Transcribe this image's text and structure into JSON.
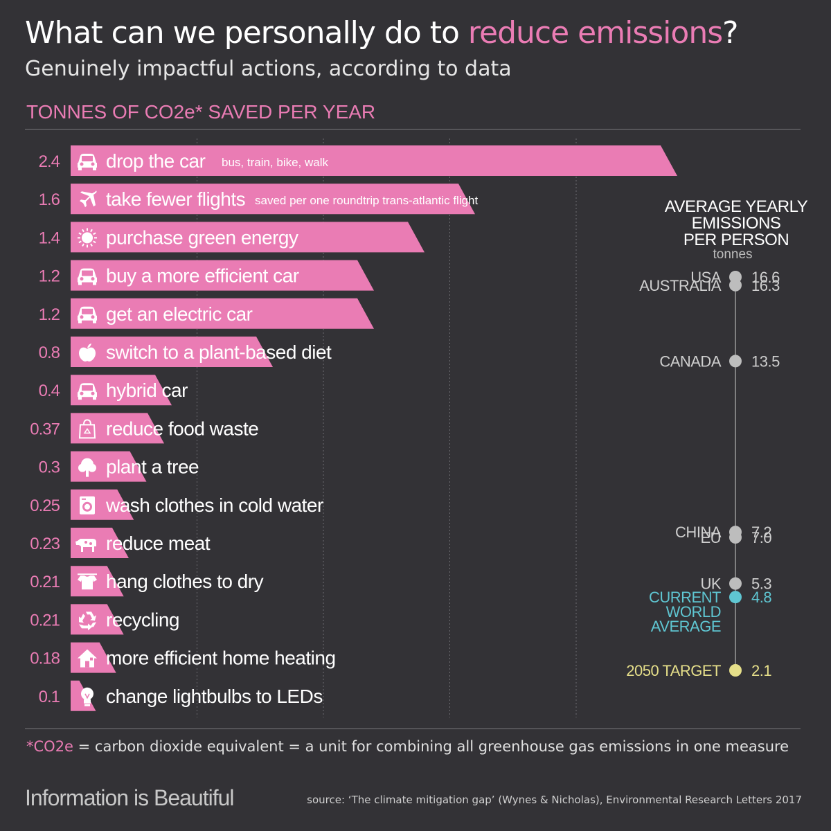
{
  "title": {
    "before": "What can we personally do to ",
    "highlight": "reduce emissions",
    "after": "?"
  },
  "subtitle": "Genuinely impactful actions, according to data",
  "section_label": "TONNES OF CO2e* SAVED PER YEAR",
  "footnote": {
    "term": "*CO2e",
    "definition": " = carbon dioxide equivalent = a unit for combining all greenhouse gas emissions in one measure"
  },
  "brand": "Information is Beautiful",
  "source": "source: ‘The climate mitigation gap’ (Wynes & Nicholas), Environmental Research Letters 2017",
  "colors": {
    "background": "#333236",
    "bar": "#ea7cb4",
    "country_dot": "#bdbdbd",
    "world_average": "#5fc6d2",
    "target": "#e6df8a"
  },
  "chart_data": [
    {
      "type": "bar",
      "orientation": "horizontal",
      "title": "TONNES OF CO2e* SAVED PER YEAR",
      "categories": [
        {
          "label": "drop the car",
          "note": "bus, train, bike, walk",
          "icon": "car-icon",
          "value_label": "2.4"
        },
        {
          "label": "take fewer flights",
          "note": "saved per one roundtrip  trans-atlantic flight",
          "icon": "plane-icon",
          "value_label": "1.6"
        },
        {
          "label": "purchase green energy",
          "note": "",
          "icon": "sun-icon",
          "value_label": "1.4"
        },
        {
          "label": "buy a more efficient car",
          "note": "",
          "icon": "car-icon",
          "value_label": "1.2"
        },
        {
          "label": "get an electric car",
          "note": "",
          "icon": "car-icon",
          "value_label": "1.2"
        },
        {
          "label": "switch to a plant-based diet",
          "note": "",
          "icon": "apple-icon",
          "value_label": "0.8"
        },
        {
          "label": "hybrid car",
          "note": "",
          "icon": "car-icon",
          "value_label": "0.4"
        },
        {
          "label": "reduce food waste",
          "note": "",
          "icon": "food-bag-icon",
          "value_label": "0.37"
        },
        {
          "label": "plant a tree",
          "note": "",
          "icon": "tree-icon",
          "value_label": "0.3"
        },
        {
          "label": "wash clothes in cold water",
          "note": "",
          "icon": "washing-machine-icon",
          "value_label": "0.25"
        },
        {
          "label": "reduce meat",
          "note": "",
          "icon": "cow-icon",
          "value_label": "0.23"
        },
        {
          "label": "hang clothes to dry",
          "note": "",
          "icon": "clothesline-icon",
          "value_label": "0.21"
        },
        {
          "label": "recycling",
          "note": "",
          "icon": "recycle-icon",
          "value_label": "0.21"
        },
        {
          "label": "more efficient home heating",
          "note": "",
          "icon": "house-icon",
          "value_label": "0.18"
        },
        {
          "label": "change lightbulbs to LEDs",
          "note": "",
          "icon": "lightbulb-icon",
          "value_label": "0.1"
        }
      ],
      "values": [
        2.4,
        1.6,
        1.4,
        1.2,
        1.2,
        0.8,
        0.4,
        0.37,
        0.3,
        0.25,
        0.23,
        0.21,
        0.21,
        0.18,
        0.1
      ],
      "xlim": [
        0,
        2.5
      ],
      "grid": true
    },
    {
      "type": "scatter",
      "title": [
        "AVERAGE YEARLY",
        "EMISSIONS",
        "PER PERSON"
      ],
      "unit": "tonnes",
      "ylim": [
        2.1,
        16.6
      ],
      "points": [
        {
          "label": [
            "USA"
          ],
          "value": 16.6,
          "value_label": "16.6",
          "kind": "country"
        },
        {
          "label": [
            "AUSTRALIA"
          ],
          "value": 16.3,
          "value_label": "16.3",
          "kind": "country"
        },
        {
          "label": [
            "CANADA"
          ],
          "value": 13.5,
          "value_label": "13.5",
          "kind": "country"
        },
        {
          "label": [
            "CHINA"
          ],
          "value": 7.2,
          "value_label": "7.2",
          "kind": "country"
        },
        {
          "label": [
            "EU"
          ],
          "value": 7.0,
          "value_label": "7.0",
          "kind": "country"
        },
        {
          "label": [
            "UK"
          ],
          "value": 5.3,
          "value_label": "5.3",
          "kind": "country"
        },
        {
          "label": [
            "CURRENT",
            "WORLD",
            "AVERAGE"
          ],
          "value": 4.8,
          "value_label": "4.8",
          "kind": "world"
        },
        {
          "label": [
            "2050 TARGET"
          ],
          "value": 2.1,
          "value_label": "2.1",
          "kind": "target"
        }
      ]
    }
  ]
}
